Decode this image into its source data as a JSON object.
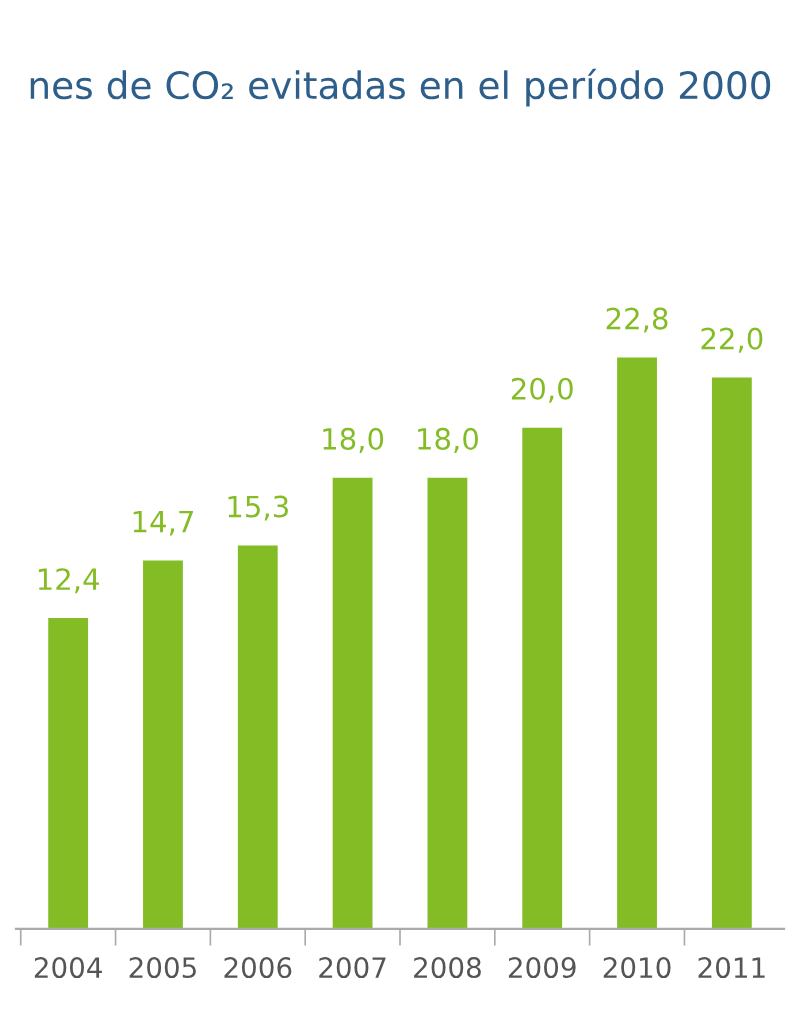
{
  "chart_data": {
    "type": "bar",
    "title": "nes de CO₂ evitadas en el período 2000",
    "categories": [
      "2004",
      "2005",
      "2006",
      "2007",
      "2008",
      "2009",
      "2010",
      "2011"
    ],
    "values": [
      12.4,
      14.7,
      15.3,
      18.0,
      18.0,
      20.0,
      22.8,
      22.0
    ],
    "value_labels": [
      "12,4",
      "14,7",
      "15,3",
      "18,0",
      "18,0",
      "20,0",
      "22,8",
      "22,0"
    ],
    "color": "#84bc26"
  }
}
